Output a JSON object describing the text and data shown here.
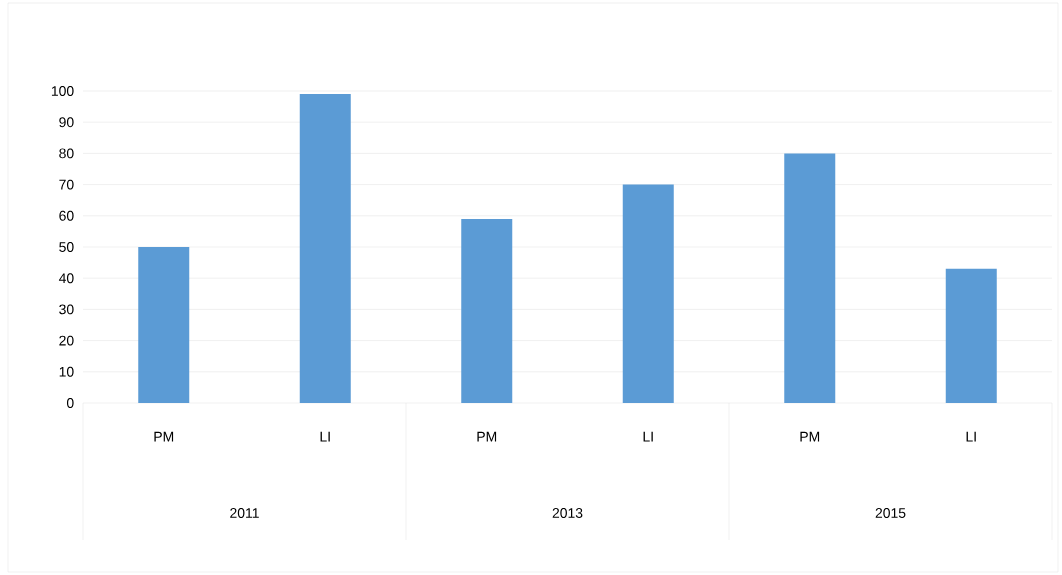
{
  "chart_data": {
    "type": "bar",
    "categories": [
      "PM",
      "LI",
      "PM",
      "LI",
      "PM",
      "LI"
    ],
    "values": [
      50,
      99,
      59,
      70,
      80,
      43
    ],
    "color": "#5b9bd5",
    "ylim": [
      0,
      100
    ],
    "yticks": [
      0,
      10,
      20,
      30,
      40,
      50,
      60,
      70,
      80,
      90,
      100
    ],
    "grid": "y",
    "annotations": [
      "2011",
      "2013",
      "2015"
    ]
  }
}
